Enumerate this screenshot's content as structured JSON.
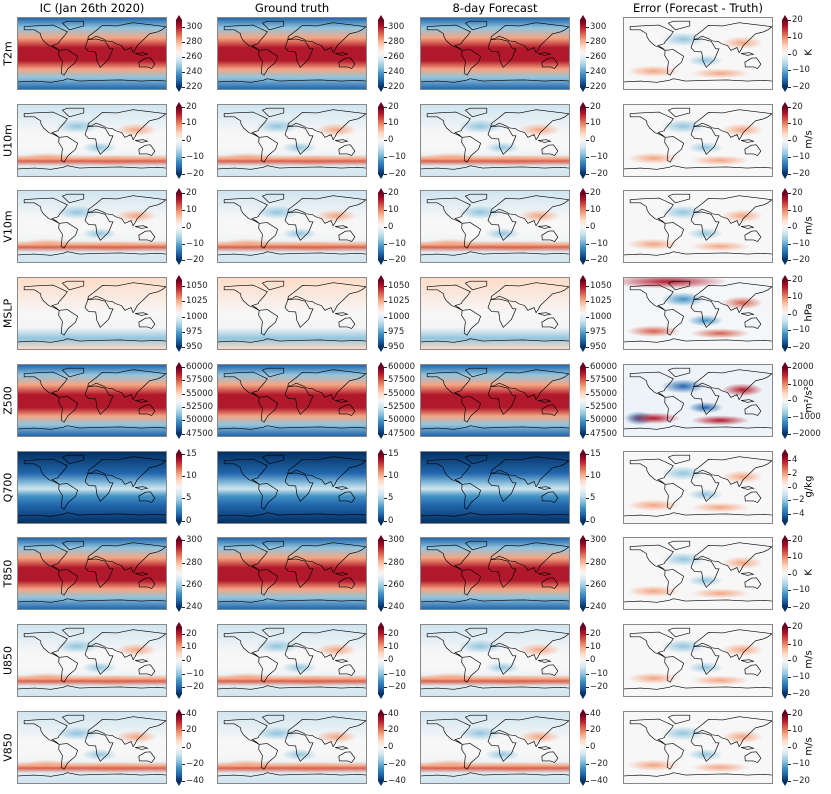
{
  "chart_data": {
    "type": "heatmap",
    "columns": [
      "IC (Jan 26th 2020)",
      "Ground truth",
      "8-day Forecast",
      "Error (Forecast - Truth)"
    ],
    "rows": [
      {
        "label": "T2m",
        "range": [
          220,
          310
        ],
        "ticks": [
          "220",
          "240",
          "260",
          "280",
          "300"
        ],
        "tick_values": [
          220,
          240,
          260,
          280,
          300
        ],
        "err_range": [
          -20,
          20
        ],
        "err_ticks": [
          "−20",
          "−10",
          "0",
          "10",
          "20"
        ],
        "err_tick_values": [
          -20,
          -10,
          0,
          10,
          20
        ],
        "unit": "K"
      },
      {
        "label": "U10m",
        "range": [
          -20,
          20
        ],
        "ticks": [
          "−20",
          "−10",
          "0",
          "10",
          "20"
        ],
        "tick_values": [
          -20,
          -10,
          0,
          10,
          20
        ],
        "err_range": [
          -20,
          20
        ],
        "err_ticks": [
          "−20",
          "−10",
          "0",
          "10",
          "20"
        ],
        "err_tick_values": [
          -20,
          -10,
          0,
          10,
          20
        ],
        "unit": "m/s"
      },
      {
        "label": "V10m",
        "range": [
          -20,
          20
        ],
        "ticks": [
          "−20",
          "−10",
          "0",
          "10",
          "20"
        ],
        "tick_values": [
          -20,
          -10,
          0,
          10,
          20
        ],
        "err_range": [
          -20,
          20
        ],
        "err_ticks": [
          "−20",
          "−10",
          "0",
          "10",
          "20"
        ],
        "err_tick_values": [
          -20,
          -10,
          0,
          10,
          20
        ],
        "unit": "m/s"
      },
      {
        "label": "MSLP",
        "range": [
          950,
          1060
        ],
        "ticks": [
          "950",
          "975",
          "1000",
          "1025",
          "1050"
        ],
        "tick_values": [
          950,
          975,
          1000,
          1025,
          1050
        ],
        "err_range": [
          -20,
          20
        ],
        "err_ticks": [
          "−20",
          "−10",
          "0",
          "10",
          "20"
        ],
        "err_tick_values": [
          -20,
          -10,
          0,
          10,
          20
        ],
        "unit": "hPa"
      },
      {
        "label": "Z500",
        "range": [
          47500,
          60000
        ],
        "ticks": [
          "47500",
          "50000",
          "52500",
          "55000",
          "57500",
          "60000"
        ],
        "tick_values": [
          47500,
          50000,
          52500,
          55000,
          57500,
          60000
        ],
        "err_range": [
          -2000,
          2000
        ],
        "err_ticks": [
          "−2000",
          "−1000",
          "0",
          "1000",
          "2000"
        ],
        "err_tick_values": [
          -2000,
          -1000,
          0,
          1000,
          2000
        ],
        "unit": "m²/s²"
      },
      {
        "label": "Q700",
        "range": [
          0,
          15
        ],
        "ticks": [
          "0",
          "5",
          "10",
          "15"
        ],
        "tick_values": [
          0,
          5,
          10,
          15
        ],
        "err_range": [
          -5,
          5
        ],
        "err_ticks": [
          "−4",
          "−2",
          "0",
          "2",
          "4"
        ],
        "err_tick_values": [
          -4,
          -2,
          0,
          2,
          4
        ],
        "unit": "g/kg"
      },
      {
        "label": "T850",
        "range": [
          240,
          300
        ],
        "ticks": [
          "240",
          "260",
          "280",
          "300"
        ],
        "tick_values": [
          240,
          260,
          280,
          300
        ],
        "err_range": [
          -20,
          20
        ],
        "err_ticks": [
          "−20",
          "−10",
          "0",
          "10",
          "20"
        ],
        "err_tick_values": [
          -20,
          -10,
          0,
          10,
          20
        ],
        "unit": "K"
      },
      {
        "label": "U850",
        "range": [
          -25,
          25
        ],
        "ticks": [
          "−20",
          "−10",
          "0",
          "10",
          "20"
        ],
        "tick_values": [
          -20,
          -10,
          0,
          10,
          20
        ],
        "err_range": [
          -20,
          20
        ],
        "err_ticks": [
          "−20",
          "−10",
          "0",
          "10",
          "20"
        ],
        "err_tick_values": [
          -20,
          -10,
          0,
          10,
          20
        ],
        "unit": "m/s"
      },
      {
        "label": "V850",
        "range": [
          -40,
          40
        ],
        "ticks": [
          "−40",
          "−20",
          "0",
          "20",
          "40"
        ],
        "tick_values": [
          -40,
          -20,
          0,
          20,
          40
        ],
        "err_range": [
          -20,
          20
        ],
        "err_ticks": [
          "−20",
          "−10",
          "0",
          "10",
          "20"
        ],
        "err_tick_values": [
          -20,
          -10,
          0,
          10,
          20
        ],
        "unit": "m/s"
      }
    ],
    "colormap": [
      "#053061",
      "#2166ac",
      "#4393c3",
      "#92c5de",
      "#d1e5f0",
      "#f7f7f7",
      "#fddbc7",
      "#f4a582",
      "#d6604d",
      "#b2182b",
      "#67001f"
    ]
  }
}
